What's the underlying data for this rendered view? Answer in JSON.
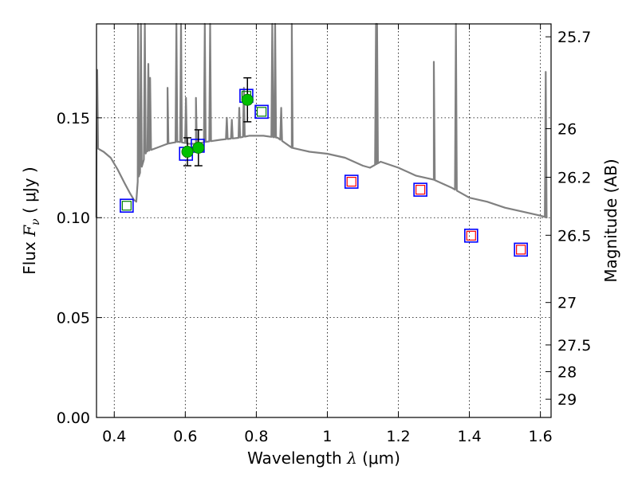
{
  "chart_data": {
    "type": "scatter",
    "xlabel": "Wavelength",
    "xlabel_symbol": "λ",
    "xlabel_unit": "(μm)",
    "ylabel": "Flux",
    "ylabel_symbol": "F",
    "ylabel_subscript": "ν",
    "ylabel_unit": "( μJy )",
    "y2label": "Magnitude (AB)",
    "xlim": [
      0.35,
      1.63
    ],
    "ylim": [
      0.0,
      0.197
    ],
    "grid": true,
    "x_ticks": [
      0.4,
      0.6,
      0.8,
      1.0,
      1.2,
      1.4,
      1.6
    ],
    "x_tick_labels": [
      "0.4",
      "0.6",
      "0.8",
      "1",
      "1.2",
      "1.4",
      "1.6"
    ],
    "y_ticks": [
      0.0,
      0.05,
      0.1,
      0.15
    ],
    "y_tick_labels": [
      "0.00",
      "0.05",
      "0.10",
      "0.15"
    ],
    "y2_ticks": [
      {
        "label": "25.7",
        "value": 25.7
      },
      {
        "label": "26",
        "value": 26.0
      },
      {
        "label": "26.2",
        "value": 26.2
      },
      {
        "label": "26.5",
        "value": 26.5
      },
      {
        "label": "27",
        "value": 27.0
      },
      {
        "label": "27.5",
        "value": 27.5
      },
      {
        "label": "28",
        "value": 28.0
      },
      {
        "label": "29",
        "value": 29.0
      }
    ],
    "series": [
      {
        "style": "model-spectrum-line",
        "color": "#808080",
        "continuum": [
          [
            0.35,
            0.135
          ],
          [
            0.37,
            0.133
          ],
          [
            0.39,
            0.13
          ],
          [
            0.41,
            0.124
          ],
          [
            0.43,
            0.117
          ],
          [
            0.445,
            0.112
          ],
          [
            0.455,
            0.109
          ],
          [
            0.462,
            0.108
          ],
          [
            0.466,
            0.118
          ],
          [
            0.47,
            0.121
          ],
          [
            0.49,
            0.133
          ],
          [
            0.52,
            0.135
          ],
          [
            0.55,
            0.137
          ],
          [
            0.58,
            0.138
          ],
          [
            0.61,
            0.137
          ],
          [
            0.63,
            0.137
          ],
          [
            0.66,
            0.138
          ],
          [
            0.7,
            0.139
          ],
          [
            0.75,
            0.14
          ],
          [
            0.78,
            0.141
          ],
          [
            0.82,
            0.141
          ],
          [
            0.86,
            0.14
          ],
          [
            0.9,
            0.135
          ],
          [
            0.95,
            0.133
          ],
          [
            1.0,
            0.132
          ],
          [
            1.05,
            0.13
          ],
          [
            1.1,
            0.126
          ],
          [
            1.12,
            0.125
          ],
          [
            1.15,
            0.128
          ],
          [
            1.2,
            0.125
          ],
          [
            1.25,
            0.121
          ],
          [
            1.3,
            0.119
          ],
          [
            1.35,
            0.115
          ],
          [
            1.4,
            0.11
          ],
          [
            1.45,
            0.108
          ],
          [
            1.5,
            0.105
          ],
          [
            1.55,
            0.103
          ],
          [
            1.6,
            0.101
          ],
          [
            1.62,
            0.1
          ]
        ],
        "emission_lines": [
          [
            0.352,
            0.174
          ],
          [
            0.467,
            0.197
          ],
          [
            0.475,
            0.197
          ],
          [
            0.486,
            0.197
          ],
          [
            0.496,
            0.177
          ],
          [
            0.501,
            0.17
          ],
          [
            0.55,
            0.165
          ],
          [
            0.575,
            0.197
          ],
          [
            0.588,
            0.197
          ],
          [
            0.602,
            0.16
          ],
          [
            0.63,
            0.16
          ],
          [
            0.655,
            0.197
          ],
          [
            0.67,
            0.197
          ],
          [
            0.717,
            0.15
          ],
          [
            0.731,
            0.149
          ],
          [
            0.752,
            0.155
          ],
          [
            0.765,
            0.165
          ],
          [
            0.845,
            0.197
          ],
          [
            0.853,
            0.197
          ],
          [
            0.87,
            0.155
          ],
          [
            0.9,
            0.197
          ],
          [
            1.137,
            0.197
          ],
          [
            1.14,
            0.197
          ],
          [
            1.3,
            0.178
          ],
          [
            1.362,
            0.197
          ],
          [
            1.615,
            0.173
          ]
        ]
      },
      {
        "style": "blue-open-squares",
        "color": "#0000ff",
        "points": [
          [
            0.435,
            0.106
          ],
          [
            0.602,
            0.132
          ],
          [
            0.635,
            0.136
          ],
          [
            0.772,
            0.161
          ],
          [
            0.815,
            0.153
          ],
          [
            1.068,
            0.118
          ],
          [
            1.262,
            0.114
          ],
          [
            1.405,
            0.091
          ],
          [
            1.545,
            0.084
          ]
        ]
      },
      {
        "style": "green-inner-squares",
        "color": "#008000",
        "points": [
          [
            0.435,
            0.106
          ],
          [
            0.772,
            0.161
          ],
          [
            0.815,
            0.153
          ]
        ]
      },
      {
        "style": "red-inner-squares",
        "color": "#ff0000",
        "points": [
          [
            1.068,
            0.118
          ],
          [
            1.262,
            0.114
          ],
          [
            1.405,
            0.091
          ],
          [
            1.545,
            0.084
          ]
        ]
      },
      {
        "style": "green-points-with-errorbars",
        "color": "#00c000",
        "points": [
          {
            "x": 0.606,
            "y": 0.133,
            "err": 0.007
          },
          {
            "x": 0.637,
            "y": 0.135,
            "err": 0.009
          },
          {
            "x": 0.775,
            "y": 0.159,
            "err": 0.011
          }
        ]
      }
    ]
  }
}
